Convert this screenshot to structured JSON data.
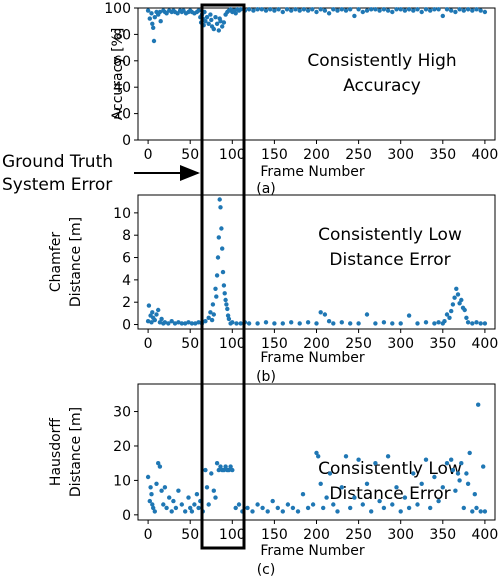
{
  "ground_truth_label": [
    "Ground Truth",
    "System Error"
  ],
  "chart_data": [
    {
      "type": "scatter",
      "sublabel": "(a)",
      "xlabel": "Frame Number",
      "ylabel": [
        "Accuracy [%]"
      ],
      "annotation": [
        "Consistently High",
        "Accuracy"
      ],
      "xlim": [
        -12,
        412
      ],
      "ylim": [
        0,
        100
      ],
      "xticks": [
        0,
        50,
        100,
        150,
        200,
        250,
        300,
        350,
        400
      ],
      "yticks": [
        0,
        20,
        40,
        60,
        80,
        100
      ],
      "color": "#1f77b4",
      "series": [
        {
          "x": [
            0,
            2,
            4,
            5,
            6,
            7,
            8,
            10,
            12,
            14,
            15,
            18,
            20,
            22,
            25,
            28,
            30,
            32,
            35,
            38,
            40,
            42,
            45,
            48,
            50,
            52,
            55,
            58,
            60,
            62,
            63,
            64,
            65,
            66,
            67,
            68,
            70,
            72,
            74,
            75,
            76,
            78,
            80,
            82,
            84,
            85,
            86,
            88,
            90,
            92,
            94,
            96,
            98,
            100,
            102,
            104,
            106,
            108,
            110,
            115,
            120,
            125,
            130,
            135,
            140,
            145,
            150,
            155,
            160,
            165,
            170,
            175,
            180,
            185,
            190,
            195,
            200,
            205,
            210,
            215,
            220,
            225,
            230,
            235,
            240,
            245,
            250,
            255,
            260,
            265,
            270,
            275,
            280,
            285,
            290,
            295,
            300,
            305,
            310,
            315,
            320,
            325,
            330,
            335,
            340,
            345,
            350,
            355,
            360,
            365,
            370,
            375,
            380,
            385,
            390,
            395,
            400
          ],
          "y": [
            98,
            92,
            96,
            88,
            85,
            75,
            93,
            97,
            95,
            97,
            90,
            98,
            97,
            96,
            98,
            97,
            98,
            97,
            96,
            98,
            97,
            98,
            96,
            97,
            98,
            97,
            96,
            97,
            98,
            93,
            89,
            95,
            92,
            87,
            97,
            90,
            93,
            88,
            95,
            91,
            86,
            84,
            93,
            88,
            83,
            92,
            90,
            86,
            89,
            95,
            97,
            98,
            99,
            97,
            98,
            96,
            99,
            98,
            99,
            98,
            99,
            98,
            99,
            99,
            98,
            99,
            98,
            99,
            97,
            99,
            98,
            99,
            98,
            99,
            98,
            99,
            97,
            99,
            98,
            96,
            99,
            98,
            99,
            98,
            99,
            94,
            99,
            97,
            98,
            99,
            99,
            98,
            99,
            98,
            97,
            99,
            99,
            98,
            99,
            98,
            99,
            97,
            99,
            98,
            99,
            99,
            94,
            99,
            98,
            97,
            99,
            98,
            99,
            98,
            99,
            98,
            97
          ]
        }
      ]
    },
    {
      "type": "scatter",
      "sublabel": "(b)",
      "xlabel": "Frame Number",
      "ylabel": [
        "Chamfer",
        "Distance [m]"
      ],
      "annotation": [
        "Consistently Low",
        "Distance Error"
      ],
      "xlim": [
        -12,
        412
      ],
      "ylim": [
        -0.4,
        11.6
      ],
      "xticks": [
        0,
        50,
        100,
        150,
        200,
        250,
        300,
        350,
        400
      ],
      "yticks": [
        0,
        2,
        4,
        6,
        8,
        10
      ],
      "color": "#1f77b4",
      "series": [
        {
          "x": [
            0,
            1,
            3,
            4,
            5,
            6,
            8,
            10,
            12,
            14,
            16,
            18,
            20,
            24,
            28,
            32,
            36,
            40,
            44,
            48,
            52,
            56,
            60,
            64,
            68,
            72,
            74,
            76,
            77,
            78,
            80,
            81,
            82,
            83,
            84,
            85,
            86,
            87,
            88,
            89,
            90,
            91,
            92,
            93,
            94,
            95,
            96,
            98,
            100,
            105,
            110,
            115,
            120,
            130,
            140,
            150,
            160,
            170,
            180,
            190,
            200,
            205,
            210,
            215,
            220,
            230,
            240,
            250,
            260,
            270,
            280,
            290,
            300,
            310,
            320,
            330,
            340,
            345,
            350,
            352,
            355,
            358,
            360,
            362,
            364,
            366,
            368,
            370,
            372,
            374,
            376,
            378,
            380,
            385,
            390,
            395,
            400
          ],
          "y": [
            0.3,
            1.7,
            0.8,
            0.2,
            1.1,
            0.6,
            0.4,
            0.9,
            1.3,
            0.2,
            0.5,
            0.1,
            0.2,
            0.1,
            0.3,
            0.1,
            0.2,
            0.1,
            0.1,
            0.2,
            0.1,
            0.1,
            0.2,
            0.1,
            0.3,
            0.6,
            1.1,
            0.4,
            1.8,
            0.9,
            3.2,
            2.5,
            4.4,
            6.0,
            7.8,
            11.2,
            10.5,
            8.6,
            6.8,
            4.7,
            3.5,
            2.8,
            2.2,
            1.8,
            1.4,
            0.8,
            0.5,
            0.1,
            0.2,
            0.1,
            0.1,
            0.2,
            0.1,
            0.1,
            0.2,
            0.1,
            0.1,
            0.2,
            0.1,
            0.2,
            0.1,
            1.1,
            0.9,
            0.3,
            0.1,
            0.2,
            0.1,
            0.1,
            0.9,
            0.1,
            0.2,
            0.1,
            0.1,
            0.8,
            0.1,
            0.2,
            0.1,
            0.2,
            0.1,
            0.3,
            0.9,
            0.6,
            1.2,
            1.8,
            2.4,
            3.2,
            2.7,
            1.9,
            2.2,
            1.5,
            1.3,
            0.6,
            0.2,
            0.1,
            0.2,
            0.1,
            0.1
          ]
        }
      ]
    },
    {
      "type": "scatter",
      "sublabel": "(c)",
      "xlabel": "Frame Number",
      "ylabel": [
        "Hausdorff",
        "Distance [m]"
      ],
      "annotation": [
        "Consistently Low",
        "Distance Error"
      ],
      "xlim": [
        -12,
        412
      ],
      "ylim": [
        -1.5,
        38
      ],
      "xticks": [
        0,
        50,
        100,
        150,
        200,
        250,
        300,
        350,
        400
      ],
      "yticks": [
        0,
        10,
        20,
        30
      ],
      "color": "#1f77b4",
      "series": [
        {
          "x": [
            0,
            2,
            3,
            4,
            5,
            6,
            8,
            10,
            12,
            14,
            16,
            18,
            20,
            22,
            25,
            28,
            30,
            33,
            36,
            40,
            44,
            48,
            50,
            52,
            55,
            58,
            60,
            62,
            65,
            68,
            70,
            72,
            75,
            78,
            80,
            82,
            84,
            86,
            88,
            90,
            92,
            94,
            96,
            98,
            100,
            104,
            108,
            112,
            118,
            124,
            130,
            136,
            142,
            148,
            154,
            160,
            166,
            172,
            178,
            184,
            190,
            196,
            200,
            202,
            205,
            208,
            212,
            216,
            220,
            225,
            230,
            235,
            240,
            245,
            250,
            255,
            260,
            265,
            270,
            275,
            280,
            285,
            290,
            295,
            300,
            305,
            310,
            315,
            320,
            325,
            330,
            335,
            340,
            345,
            350,
            355,
            360,
            362,
            365,
            368,
            370,
            372,
            375,
            378,
            380,
            382,
            385,
            388,
            390,
            392,
            395,
            398,
            400
          ],
          "y": [
            11,
            4,
            8,
            6,
            3,
            2,
            1,
            9,
            15,
            14,
            7,
            3,
            8,
            2,
            5,
            1,
            4,
            2,
            7,
            3,
            1,
            5,
            2,
            1,
            3,
            6,
            2,
            4,
            1,
            13,
            8,
            3,
            12,
            7,
            5,
            15,
            13,
            14,
            13,
            13,
            14,
            13,
            13,
            14,
            13,
            2,
            3,
            1,
            2,
            1,
            3,
            2,
            1,
            4,
            2,
            1,
            3,
            2,
            1,
            6,
            2,
            3,
            18,
            17,
            9,
            2,
            5,
            12,
            3,
            1,
            8,
            17,
            2,
            5,
            16,
            3,
            9,
            1,
            15,
            4,
            2,
            17,
            3,
            8,
            1,
            5,
            2,
            12,
            3,
            9,
            16,
            2,
            11,
            4,
            8,
            15,
            16,
            13,
            7,
            12,
            10,
            15,
            2,
            12,
            9,
            18,
            1,
            6,
            2,
            32,
            1,
            14,
            1
          ]
        }
      ]
    }
  ]
}
